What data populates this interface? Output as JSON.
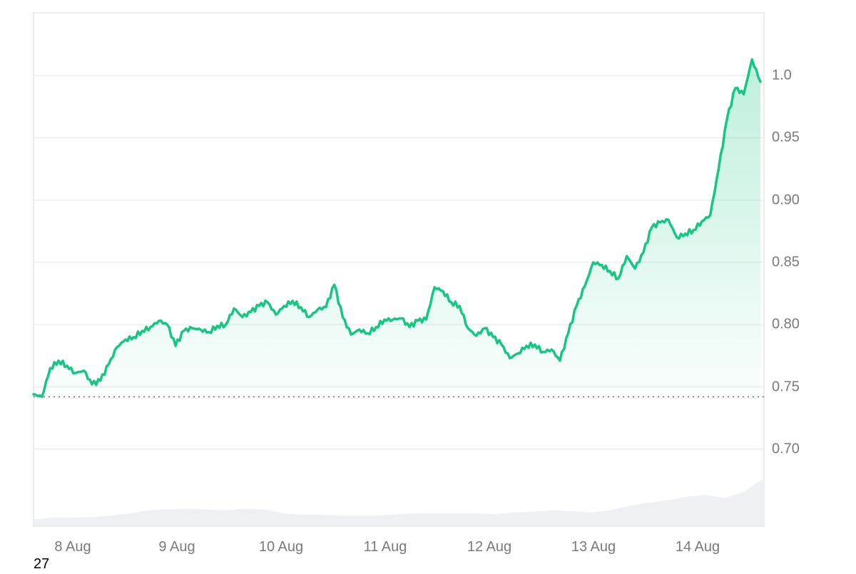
{
  "chart_data": {
    "type": "line",
    "title": "",
    "xlabel": "",
    "ylabel": "",
    "ylim": [
      0.64,
      1.05
    ],
    "y_ticks": [
      "1.0",
      "0.95",
      "0.90",
      "0.85",
      "0.80",
      "0.75",
      "0.70"
    ],
    "x_ticks": [
      "8 Aug",
      "9 Aug",
      "10 Aug",
      "11 Aug",
      "12 Aug",
      "13 Aug",
      "14 Aug"
    ],
    "grid": true,
    "legend": null,
    "baseline_value": 0.742,
    "line_color": "#16c784",
    "series": [
      {
        "name": "price",
        "points": [
          {
            "x": "7 Aug 16:00",
            "y": 0.744
          },
          {
            "x": "7 Aug 18:00",
            "y": 0.742
          },
          {
            "x": "7 Aug 20:00",
            "y": 0.765
          },
          {
            "x": "7 Aug 22:00",
            "y": 0.771
          },
          {
            "x": "8 Aug 00:00",
            "y": 0.767
          },
          {
            "x": "8 Aug 02:00",
            "y": 0.761
          },
          {
            "x": "8 Aug 04:00",
            "y": 0.763
          },
          {
            "x": "8 Aug 06:00",
            "y": 0.752
          },
          {
            "x": "8 Aug 08:00",
            "y": 0.755
          },
          {
            "x": "8 Aug 10:00",
            "y": 0.768
          },
          {
            "x": "8 Aug 12:00",
            "y": 0.782
          },
          {
            "x": "8 Aug 14:00",
            "y": 0.788
          },
          {
            "x": "8 Aug 16:00",
            "y": 0.79
          },
          {
            "x": "8 Aug 18:00",
            "y": 0.795
          },
          {
            "x": "8 Aug 20:00",
            "y": 0.798
          },
          {
            "x": "8 Aug 22:00",
            "y": 0.803
          },
          {
            "x": "9 Aug 00:00",
            "y": 0.8
          },
          {
            "x": "9 Aug 02:00",
            "y": 0.783
          },
          {
            "x": "9 Aug 04:00",
            "y": 0.795
          },
          {
            "x": "9 Aug 06:00",
            "y": 0.797
          },
          {
            "x": "9 Aug 08:00",
            "y": 0.796
          },
          {
            "x": "9 Aug 10:00",
            "y": 0.794
          },
          {
            "x": "9 Aug 12:00",
            "y": 0.799
          },
          {
            "x": "9 Aug 14:00",
            "y": 0.8
          },
          {
            "x": "9 Aug 16:00",
            "y": 0.813
          },
          {
            "x": "9 Aug 18:00",
            "y": 0.806
          },
          {
            "x": "9 Aug 20:00",
            "y": 0.81
          },
          {
            "x": "9 Aug 22:00",
            "y": 0.815
          },
          {
            "x": "10 Aug 00:00",
            "y": 0.818
          },
          {
            "x": "10 Aug 02:00",
            "y": 0.808
          },
          {
            "x": "10 Aug 04:00",
            "y": 0.815
          },
          {
            "x": "10 Aug 06:00",
            "y": 0.819
          },
          {
            "x": "10 Aug 08:00",
            "y": 0.814
          },
          {
            "x": "10 Aug 10:00",
            "y": 0.806
          },
          {
            "x": "10 Aug 12:00",
            "y": 0.812
          },
          {
            "x": "10 Aug 14:00",
            "y": 0.814
          },
          {
            "x": "10 Aug 16:00",
            "y": 0.832
          },
          {
            "x": "10 Aug 18:00",
            "y": 0.806
          },
          {
            "x": "10 Aug 20:00",
            "y": 0.792
          },
          {
            "x": "10 Aug 22:00",
            "y": 0.796
          },
          {
            "x": "11 Aug 00:00",
            "y": 0.793
          },
          {
            "x": "11 Aug 02:00",
            "y": 0.798
          },
          {
            "x": "11 Aug 04:00",
            "y": 0.804
          },
          {
            "x": "11 Aug 06:00",
            "y": 0.804
          },
          {
            "x": "11 Aug 08:00",
            "y": 0.805
          },
          {
            "x": "11 Aug 10:00",
            "y": 0.798
          },
          {
            "x": "11 Aug 12:00",
            "y": 0.803
          },
          {
            "x": "11 Aug 14:00",
            "y": 0.804
          },
          {
            "x": "11 Aug 16:00",
            "y": 0.83
          },
          {
            "x": "11 Aug 18:00",
            "y": 0.827
          },
          {
            "x": "11 Aug 20:00",
            "y": 0.818
          },
          {
            "x": "11 Aug 22:00",
            "y": 0.815
          },
          {
            "x": "12 Aug 00:00",
            "y": 0.797
          },
          {
            "x": "12 Aug 02:00",
            "y": 0.791
          },
          {
            "x": "12 Aug 04:00",
            "y": 0.797
          },
          {
            "x": "12 Aug 06:00",
            "y": 0.79
          },
          {
            "x": "12 Aug 08:00",
            "y": 0.784
          },
          {
            "x": "12 Aug 10:00",
            "y": 0.773
          },
          {
            "x": "12 Aug 12:00",
            "y": 0.777
          },
          {
            "x": "12 Aug 14:00",
            "y": 0.783
          },
          {
            "x": "12 Aug 16:00",
            "y": 0.784
          },
          {
            "x": "12 Aug 18:00",
            "y": 0.778
          },
          {
            "x": "12 Aug 20:00",
            "y": 0.78
          },
          {
            "x": "12 Aug 22:00",
            "y": 0.771
          },
          {
            "x": "13 Aug 00:00",
            "y": 0.793
          },
          {
            "x": "13 Aug 02:00",
            "y": 0.815
          },
          {
            "x": "13 Aug 04:00",
            "y": 0.831
          },
          {
            "x": "13 Aug 06:00",
            "y": 0.85
          },
          {
            "x": "13 Aug 08:00",
            "y": 0.848
          },
          {
            "x": "13 Aug 10:00",
            "y": 0.843
          },
          {
            "x": "13 Aug 12:00",
            "y": 0.837
          },
          {
            "x": "13 Aug 14:00",
            "y": 0.855
          },
          {
            "x": "13 Aug 16:00",
            "y": 0.845
          },
          {
            "x": "13 Aug 18:00",
            "y": 0.858
          },
          {
            "x": "13 Aug 20:00",
            "y": 0.878
          },
          {
            "x": "13 Aug 22:00",
            "y": 0.882
          },
          {
            "x": "14 Aug 00:00",
            "y": 0.884
          },
          {
            "x": "14 Aug 02:00",
            "y": 0.87
          },
          {
            "x": "14 Aug 04:00",
            "y": 0.873
          },
          {
            "x": "14 Aug 06:00",
            "y": 0.876
          },
          {
            "x": "14 Aug 08:00",
            "y": 0.883
          },
          {
            "x": "14 Aug 10:00",
            "y": 0.888
          },
          {
            "x": "14 Aug 12:00",
            "y": 0.925
          },
          {
            "x": "14 Aug 14:00",
            "y": 0.965
          },
          {
            "x": "14 Aug 16:00",
            "y": 0.99
          },
          {
            "x": "14 Aug 17:00",
            "y": 0.985
          },
          {
            "x": "14 Aug 18:00",
            "y": 1.013
          },
          {
            "x": "14 Aug 19:00",
            "y": 0.995
          }
        ]
      },
      {
        "name": "volume",
        "type": "area",
        "relative_values": [
          0.08,
          0.1,
          0.1,
          0.11,
          0.13,
          0.16,
          0.2,
          0.21,
          0.22,
          0.21,
          0.2,
          0.22,
          0.21,
          0.16,
          0.14,
          0.14,
          0.13,
          0.13,
          0.13,
          0.15,
          0.16,
          0.16,
          0.16,
          0.16,
          0.15,
          0.17,
          0.18,
          0.2,
          0.19,
          0.17,
          0.2,
          0.26,
          0.3,
          0.33,
          0.38,
          0.4,
          0.36,
          0.45,
          0.62
        ]
      }
    ]
  },
  "footnote": "27"
}
